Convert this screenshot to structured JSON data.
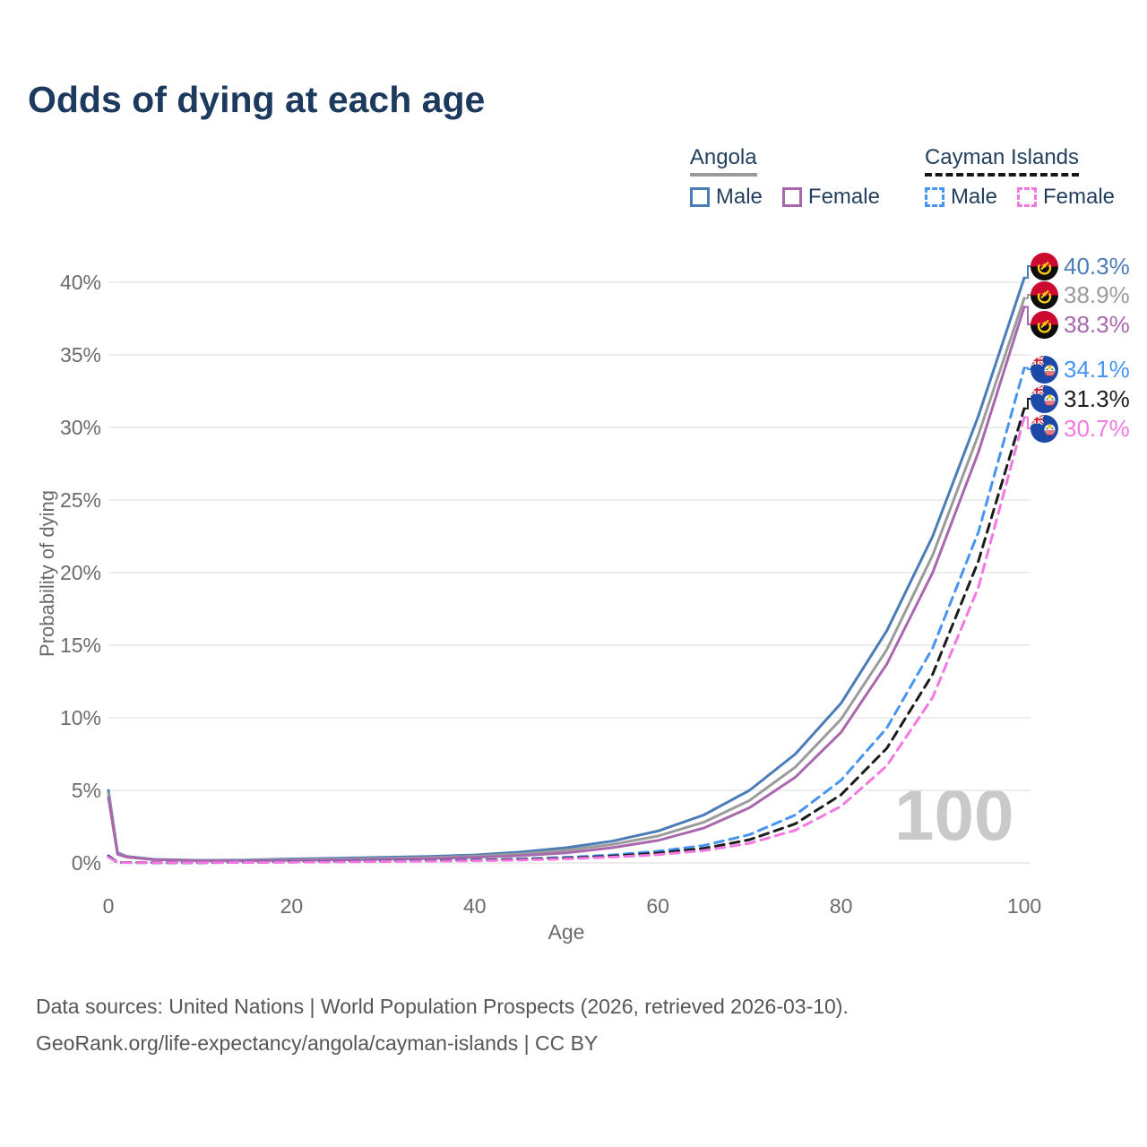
{
  "title": "Odds of dying at each age",
  "legend": {
    "groups": [
      {
        "label": "Angola",
        "style": "solid",
        "underline_color": "#9b9b9b",
        "items": [
          {
            "label": "Male",
            "color": "#4a7db8"
          },
          {
            "label": "Female",
            "color": "#a968ad"
          }
        ]
      },
      {
        "label": "Cayman Islands",
        "style": "dashed",
        "underline_color": "#161616",
        "items": [
          {
            "label": "Male",
            "color": "#4695f2"
          },
          {
            "label": "Female",
            "color": "#f478e2"
          }
        ]
      }
    ]
  },
  "watermark": "100",
  "footer": {
    "line1": "Data sources: United Nations | World Population Prospects (2026, retrieved 2026-03-10).",
    "line2": "GeoRank.org/life-expectancy/angola/cayman-islands | CC BY"
  },
  "colors": {
    "title": "#1c3a5e",
    "axis_text": "#6b6b6b",
    "grid": "#e7e7e7",
    "watermark": "#c9c9c9",
    "footer": "#565656"
  },
  "chart_data": {
    "type": "line",
    "title": "Odds of dying at each age",
    "xlabel": "Age",
    "ylabel": "Probability of dying",
    "xlim": [
      0,
      100
    ],
    "ylim": [
      0,
      40
    ],
    "xticks": [
      0,
      20,
      40,
      60,
      80,
      100
    ],
    "yticks": [
      0,
      5,
      10,
      15,
      20,
      25,
      30,
      35,
      40
    ],
    "ytick_suffix": "%",
    "grid": true,
    "legend_position": "top-right",
    "x": [
      0,
      1,
      2,
      5,
      10,
      15,
      20,
      25,
      30,
      35,
      40,
      45,
      50,
      55,
      60,
      65,
      70,
      75,
      80,
      85,
      90,
      95,
      100
    ],
    "series": [
      {
        "id": "angola-male",
        "name": "Angola Male",
        "country": "Angola",
        "sex": "Male",
        "flag": "angola",
        "color": "#4a7db8",
        "label_color": "#4a7db8",
        "dash": "solid",
        "end_label": "40.3%",
        "end_value": 40.3,
        "y": [
          5.0,
          0.7,
          0.45,
          0.25,
          0.18,
          0.2,
          0.28,
          0.33,
          0.38,
          0.45,
          0.55,
          0.75,
          1.05,
          1.5,
          2.2,
          3.3,
          5.0,
          7.5,
          11.0,
          16.0,
          22.5,
          30.8,
          40.3
        ]
      },
      {
        "id": "angola-total",
        "name": "Angola Both sexes",
        "country": "Angola",
        "sex": "Both",
        "flag": "angola",
        "color": "#9b9b9b",
        "label_color": "#9b9b9b",
        "dash": "solid",
        "end_label": "38.9%",
        "end_value": 38.9,
        "y": [
          4.8,
          0.65,
          0.42,
          0.23,
          0.16,
          0.17,
          0.23,
          0.27,
          0.31,
          0.37,
          0.46,
          0.62,
          0.88,
          1.27,
          1.85,
          2.8,
          4.3,
          6.6,
          9.9,
          14.7,
          21.2,
          29.5,
          38.9
        ]
      },
      {
        "id": "angola-female",
        "name": "Angola Female",
        "country": "Angola",
        "sex": "Female",
        "flag": "angola",
        "color": "#a968ad",
        "label_color": "#a968ad",
        "dash": "solid",
        "end_label": "38.3%",
        "end_value": 38.3,
        "y": [
          4.5,
          0.6,
          0.4,
          0.22,
          0.15,
          0.15,
          0.18,
          0.21,
          0.25,
          0.3,
          0.38,
          0.5,
          0.7,
          1.05,
          1.55,
          2.4,
          3.8,
          5.9,
          9.0,
          13.7,
          20.0,
          28.3,
          38.3
        ]
      },
      {
        "id": "cayman-male",
        "name": "Cayman Islands Male",
        "country": "Cayman Islands",
        "sex": "Male",
        "flag": "cayman",
        "color": "#4695f2",
        "label_color": "#4695f2",
        "dash": "dashed",
        "end_label": "34.1%",
        "end_value": 34.1,
        "y": [
          0.5,
          0.04,
          0.03,
          0.02,
          0.02,
          0.05,
          0.09,
          0.11,
          0.13,
          0.16,
          0.2,
          0.27,
          0.38,
          0.55,
          0.8,
          1.2,
          1.95,
          3.3,
          5.7,
          9.3,
          14.8,
          22.8,
          34.1
        ]
      },
      {
        "id": "cayman-total",
        "name": "Cayman Islands Both sexes",
        "country": "Cayman Islands",
        "sex": "Both",
        "flag": "cayman",
        "color": "#1c1c1c",
        "label_color": "#1c1c1c",
        "dash": "dashed",
        "end_label": "31.3%",
        "end_value": 31.3,
        "y": [
          0.45,
          0.04,
          0.03,
          0.02,
          0.02,
          0.04,
          0.07,
          0.09,
          0.11,
          0.14,
          0.18,
          0.24,
          0.33,
          0.47,
          0.68,
          1.0,
          1.6,
          2.7,
          4.7,
          7.9,
          13.0,
          20.8,
          31.3
        ]
      },
      {
        "id": "cayman-female",
        "name": "Cayman Islands Female",
        "country": "Cayman Islands",
        "sex": "Female",
        "flag": "cayman",
        "color": "#f478e2",
        "label_color": "#f478e2",
        "dash": "dashed",
        "end_label": "30.7%",
        "end_value": 30.7,
        "y": [
          0.4,
          0.03,
          0.02,
          0.02,
          0.02,
          0.03,
          0.05,
          0.07,
          0.09,
          0.12,
          0.15,
          0.2,
          0.28,
          0.4,
          0.57,
          0.85,
          1.35,
          2.25,
          3.9,
          6.7,
          11.4,
          19.0,
          30.7
        ]
      }
    ]
  }
}
